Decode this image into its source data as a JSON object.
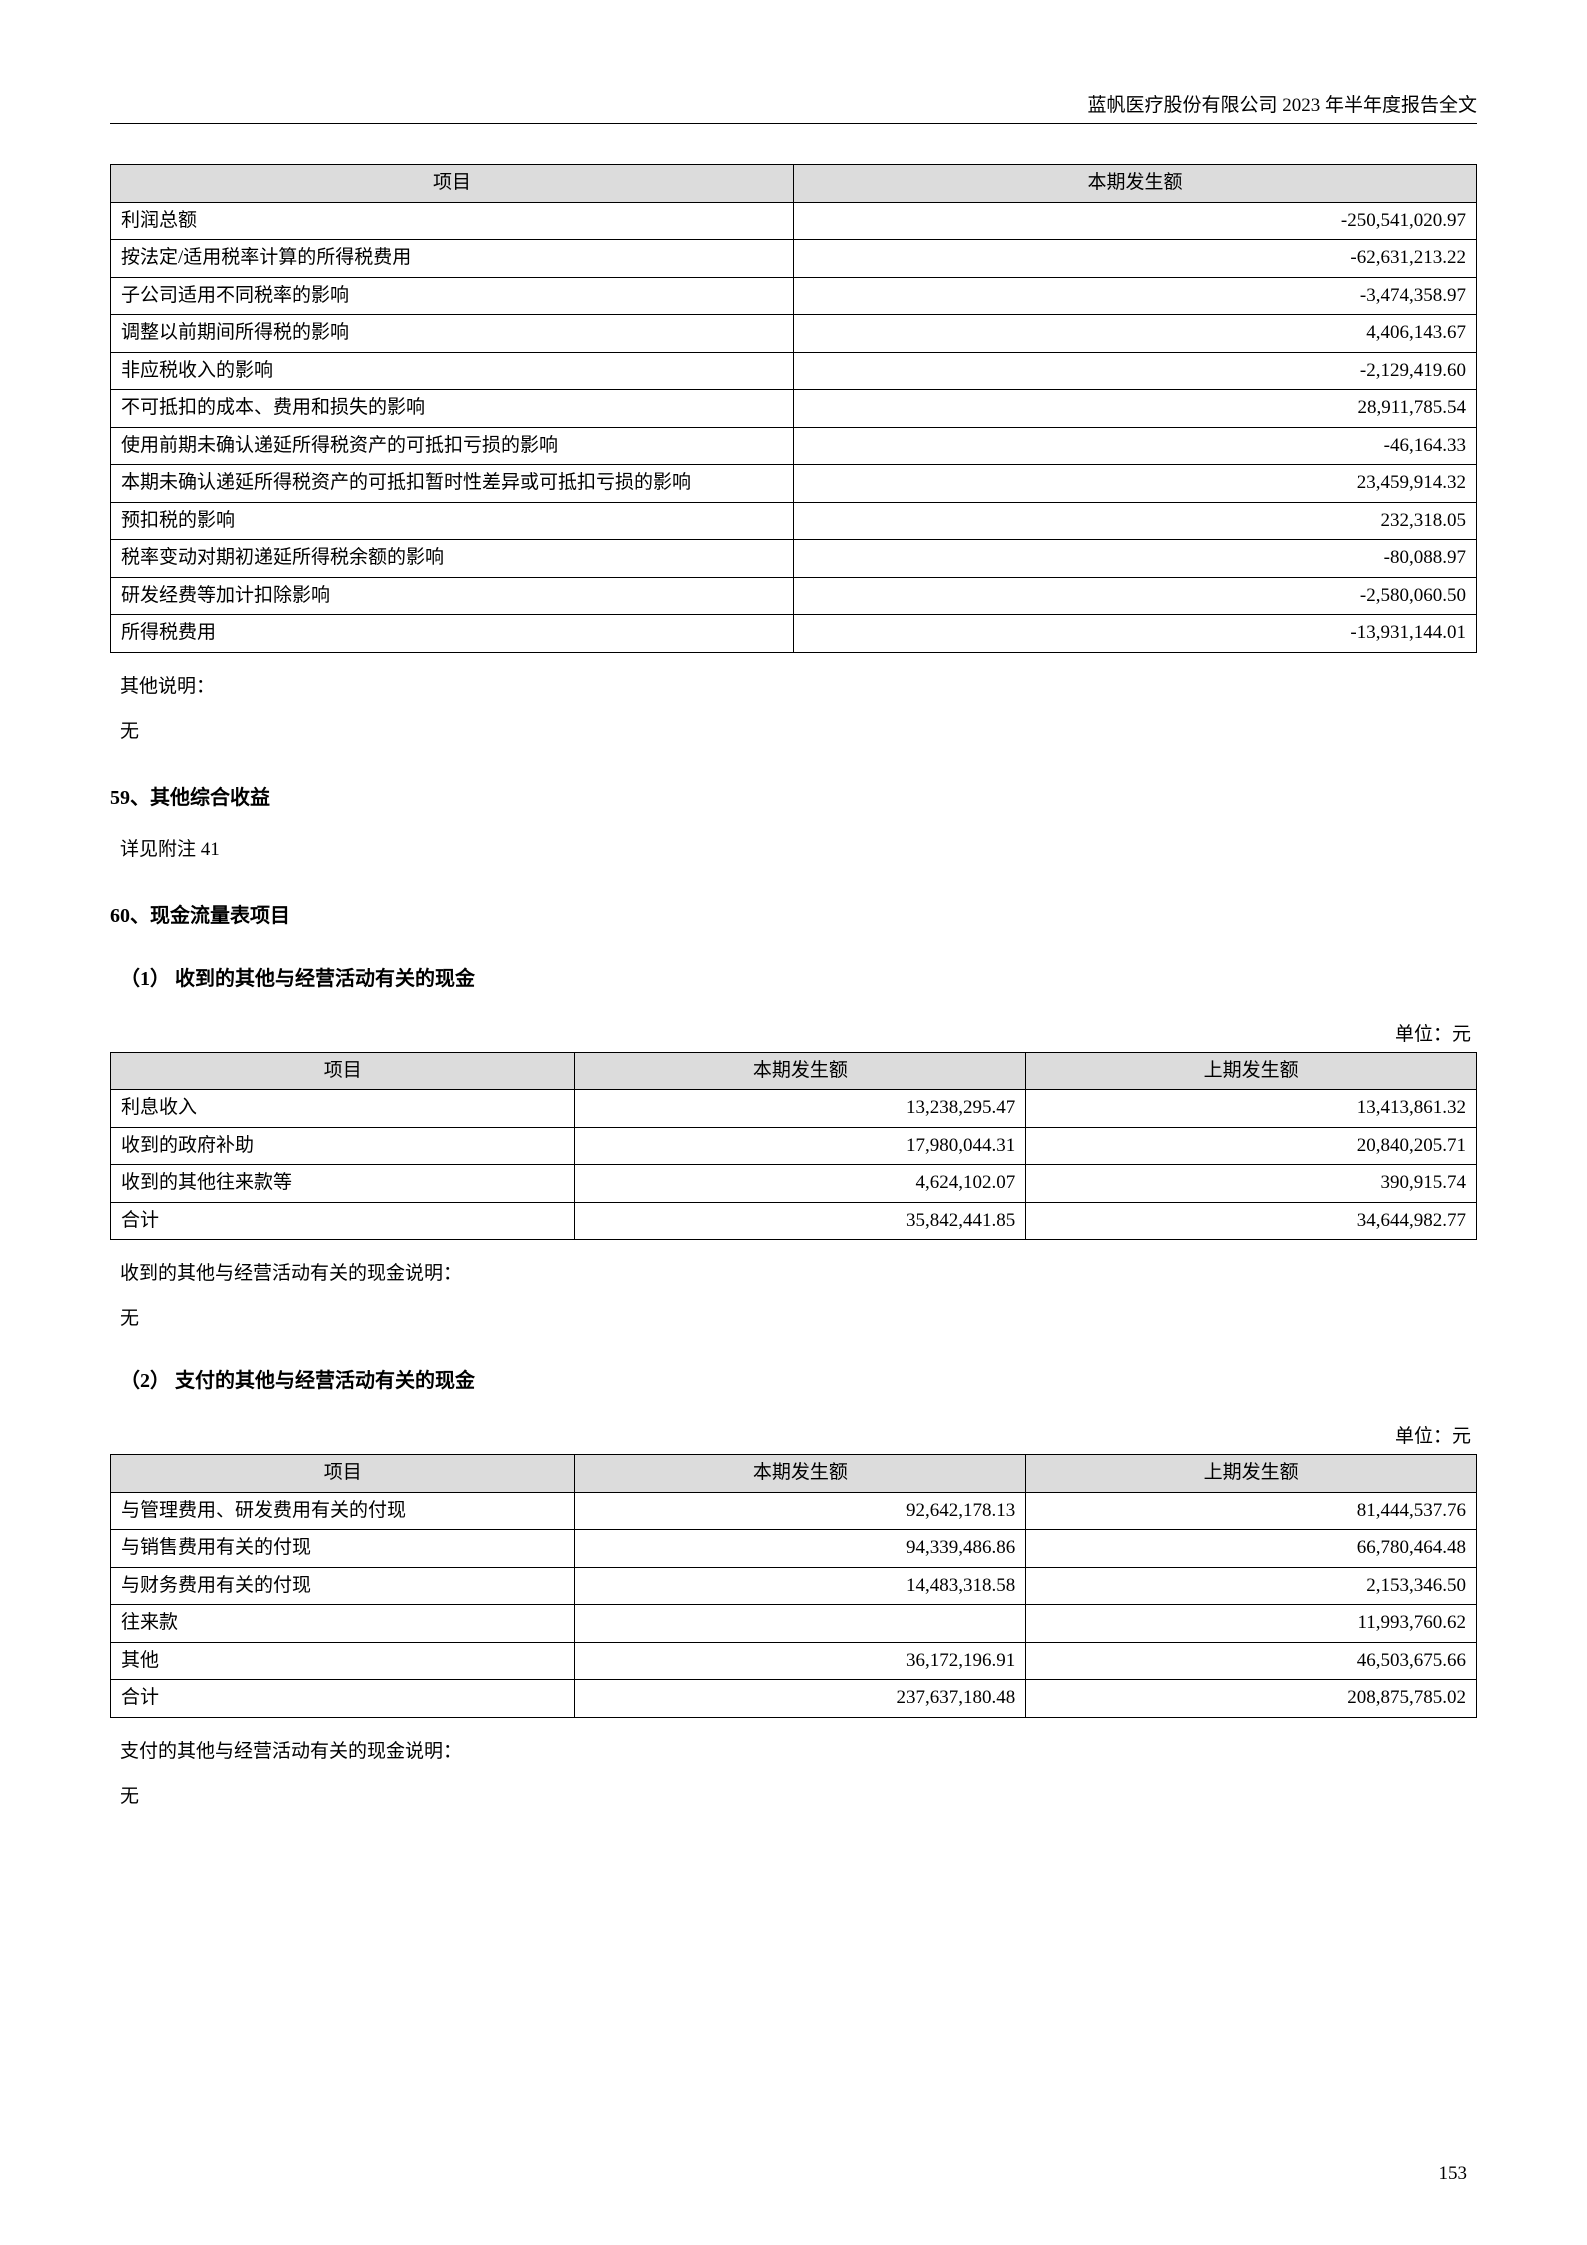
{
  "header": {
    "right_text": "蓝帆医疗股份有限公司 2023 年半年度报告全文"
  },
  "table1": {
    "columns": [
      "项目",
      "本期发生额"
    ],
    "col_widths": [
      "50%",
      "50%"
    ],
    "rows": [
      {
        "label": "利润总额",
        "value": "-250,541,020.97"
      },
      {
        "label": "按法定/适用税率计算的所得税费用",
        "value": "-62,631,213.22"
      },
      {
        "label": "子公司适用不同税率的影响",
        "value": "-3,474,358.97"
      },
      {
        "label": "调整以前期间所得税的影响",
        "value": "4,406,143.67"
      },
      {
        "label": "非应税收入的影响",
        "value": "-2,129,419.60"
      },
      {
        "label": "不可抵扣的成本、费用和损失的影响",
        "value": "28,911,785.54"
      },
      {
        "label": "使用前期未确认递延所得税资产的可抵扣亏损的影响",
        "value": "-46,164.33"
      },
      {
        "label": "本期未确认递延所得税资产的可抵扣暂时性差异或可抵扣亏损的影响",
        "value": "23,459,914.32"
      },
      {
        "label": "预扣税的影响",
        "value": "232,318.05"
      },
      {
        "label": "税率变动对期初递延所得税余额的影响",
        "value": "-80,088.97"
      },
      {
        "label": "研发经费等加计扣除影响",
        "value": "-2,580,060.50"
      },
      {
        "label": "所得税费用",
        "value": "-13,931,144.01"
      }
    ]
  },
  "notes": {
    "other_desc_label": "其他说明：",
    "none": "无",
    "see_note_41": "详见附注 41",
    "received_desc": "收到的其他与经营活动有关的现金说明：",
    "paid_desc": "支付的其他与经营活动有关的现金说明："
  },
  "sections": {
    "s59": "59、其他综合收益",
    "s60": "60、现金流量表项目",
    "s60_1": "（1）  收到的其他与经营活动有关的现金",
    "s60_2": "（2）  支付的其他与经营活动有关的现金"
  },
  "unit_label": "单位：元",
  "table2": {
    "columns": [
      "项目",
      "本期发生额",
      "上期发生额"
    ],
    "col_widths": [
      "34%",
      "33%",
      "33%"
    ],
    "rows": [
      {
        "label": "利息收入",
        "c1": "13,238,295.47",
        "c2": "13,413,861.32"
      },
      {
        "label": "收到的政府补助",
        "c1": "17,980,044.31",
        "c2": "20,840,205.71"
      },
      {
        "label": "收到的其他往来款等",
        "c1": "4,624,102.07",
        "c2": "390,915.74"
      },
      {
        "label": "合计",
        "c1": "35,842,441.85",
        "c2": "34,644,982.77"
      }
    ]
  },
  "table3": {
    "columns": [
      "项目",
      "本期发生额",
      "上期发生额"
    ],
    "col_widths": [
      "34%",
      "33%",
      "33%"
    ],
    "rows": [
      {
        "label": "与管理费用、研发费用有关的付现",
        "c1": "92,642,178.13",
        "c2": "81,444,537.76"
      },
      {
        "label": "与销售费用有关的付现",
        "c1": "94,339,486.86",
        "c2": "66,780,464.48"
      },
      {
        "label": "与财务费用有关的付现",
        "c1": "14,483,318.58",
        "c2": "2,153,346.50"
      },
      {
        "label": "往来款",
        "c1": "",
        "c2": "11,993,760.62"
      },
      {
        "label": "其他",
        "c1": "36,172,196.91",
        "c2": "46,503,675.66"
      },
      {
        "label": "合计",
        "c1": "237,637,180.48",
        "c2": "208,875,785.02"
      }
    ]
  },
  "page_number": "153",
  "style": {
    "header_bg": "#dcdcdc",
    "border_color": "#000000",
    "font_size_pt": 14
  }
}
